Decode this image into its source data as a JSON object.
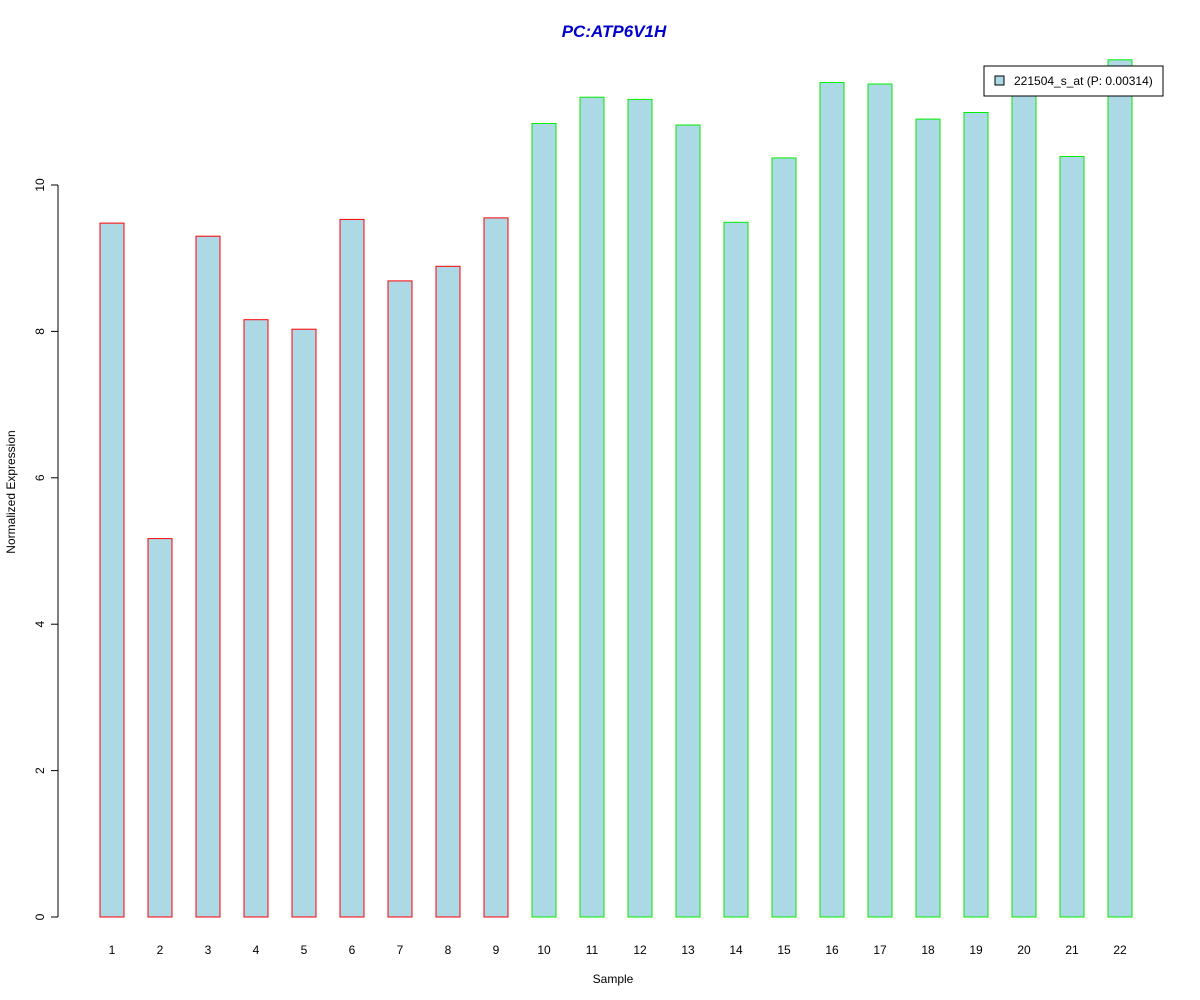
{
  "chart_data": {
    "type": "bar",
    "title": "PC:ATP6V1H",
    "xlabel": "Sample",
    "ylabel": "Normalized Expression",
    "ylim": [
      0,
      12
    ],
    "yticks": [
      0,
      2,
      4,
      6,
      8,
      10
    ],
    "grid": false,
    "legend": {
      "placement": "top-right",
      "entries": [
        {
          "label": "221504_s_at (P: 0.00314)",
          "color": "#add8e6"
        }
      ]
    },
    "categories": [
      "1",
      "2",
      "3",
      "4",
      "5",
      "6",
      "7",
      "8",
      "9",
      "10",
      "11",
      "12",
      "13",
      "14",
      "15",
      "16",
      "17",
      "18",
      "19",
      "20",
      "21",
      "22"
    ],
    "values": [
      9.48,
      5.17,
      9.3,
      8.16,
      8.03,
      9.53,
      8.69,
      8.89,
      9.55,
      10.84,
      11.2,
      11.17,
      10.82,
      9.49,
      10.37,
      11.4,
      11.38,
      10.9,
      10.99,
      11.33,
      10.39,
      11.71
    ],
    "bar_fill": "#add8e6",
    "groups": [
      {
        "color": "#ff0000",
        "categories": [
          "1",
          "2",
          "3",
          "4",
          "5",
          "6",
          "7",
          "8",
          "9"
        ]
      },
      {
        "color": "#00ee00",
        "categories": [
          "10",
          "11",
          "12",
          "13",
          "14",
          "15",
          "16",
          "17",
          "18",
          "19",
          "20",
          "21",
          "22"
        ]
      }
    ],
    "title_color": "#0000cc"
  }
}
